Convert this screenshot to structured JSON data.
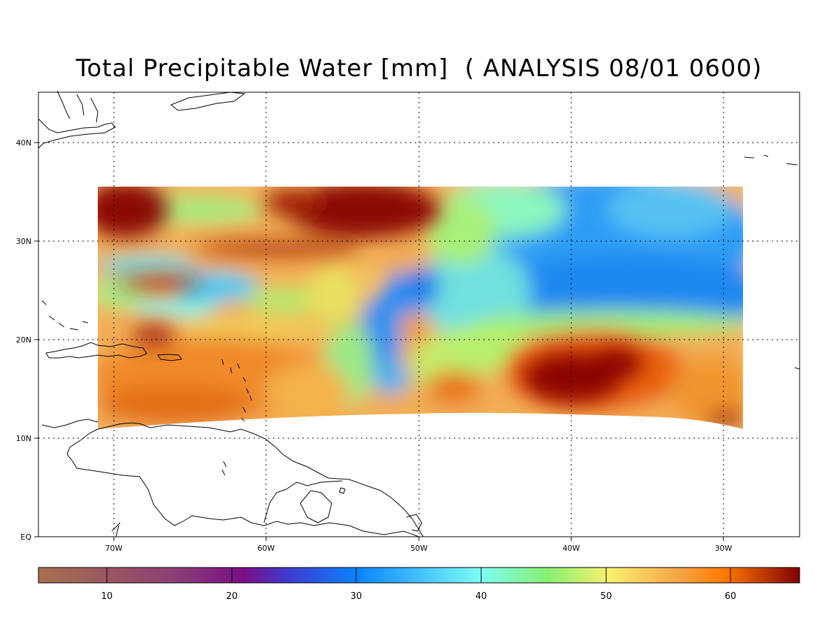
{
  "title": "Total Precipitable Water [mm]  ( ANALYSIS 08/01 0600)",
  "map": {
    "lon_labels": [
      "70W",
      "60W",
      "50W",
      "40W",
      "30W"
    ],
    "lat_labels": [
      "40N",
      "30N",
      "20N",
      "10N",
      "EQ"
    ]
  },
  "colorbar": {
    "tick_labels": [
      "10",
      "20",
      "30",
      "40",
      "50",
      "60"
    ],
    "range": [
      4.5,
      65.5
    ],
    "colors": [
      "#a8704e",
      "#7a0f86",
      "#0a84ff",
      "#7dfdf5",
      "#88f070",
      "#fbf070",
      "#f0a640",
      "#ff7b00",
      "#820000"
    ]
  }
}
